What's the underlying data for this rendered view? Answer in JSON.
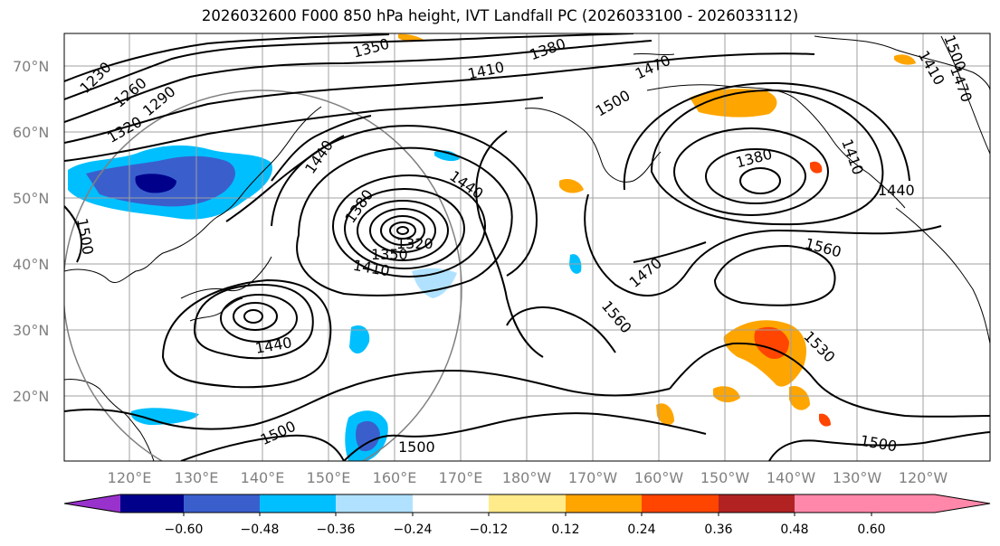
{
  "title": "2026032600 F000 850 hPa height, IVT Landfall PC (2026033100 - 2026033112)",
  "lat_labels": [
    "70°N",
    "60°N",
    "50°N",
    "40°N",
    "30°N",
    "20°N"
  ],
  "lon_labels": [
    "120°E",
    "130°E",
    "140°E",
    "150°E",
    "160°E",
    "170°E",
    "180°W",
    "170°W",
    "160°W",
    "150°W",
    "140°W",
    "130°W",
    "120°W"
  ],
  "colorbar": {
    "ticks": [
      "−0.60",
      "−0.48",
      "−0.36",
      "−0.24",
      "−0.12",
      "0.12",
      "0.24",
      "0.36",
      "0.48",
      "0.60"
    ],
    "colors": [
      "#9932cc",
      "#00008b",
      "#3a5fcd",
      "#00bfff",
      "#b0e2ff",
      "#ffffff",
      "#ffeb8a",
      "#ffa500",
      "#ff4500",
      "#b22222",
      "#ff88aa"
    ]
  },
  "contour_labels": [
    "1230",
    "1260",
    "1290",
    "1320",
    "1350",
    "1380",
    "1410",
    "1470",
    "1500",
    "1440",
    "1500",
    "1440",
    "1380",
    "1350",
    "1410",
    "1320",
    "1440",
    "1410",
    "1470",
    "1500",
    "1560",
    "1380",
    "1410",
    "1440",
    "1560",
    "1530",
    "1500",
    "1500",
    "1500",
    "1470"
  ]
}
